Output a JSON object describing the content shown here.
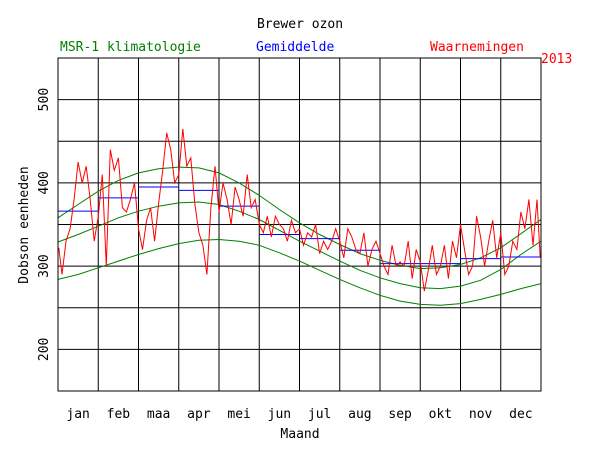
{
  "chart_data": {
    "type": "line",
    "title": "Brewer ozon",
    "year": "2013",
    "xlabel": "Maand",
    "ylabel": "Dobson eenheden",
    "categories": [
      "jan",
      "feb",
      "maa",
      "apr",
      "mei",
      "jun",
      "jul",
      "aug",
      "sep",
      "okt",
      "nov",
      "dec"
    ],
    "xlim": [
      0,
      12
    ],
    "ylim": [
      150,
      550
    ],
    "yticks": [
      200,
      300,
      400,
      500
    ],
    "grid": true,
    "legend": {
      "climatology": "MSR-1 klimatologie",
      "mean": "Gemiddelde",
      "observations": "Waarnemingen"
    },
    "colors": {
      "climatology": "#008000",
      "mean": "#0000ff",
      "observations": "#ff0000",
      "axes": "#000000"
    },
    "series": [
      {
        "name": "MSR-1 klimatologie (boven)",
        "kind": "climatology",
        "x": [
          0,
          0.5,
          1,
          1.5,
          2,
          2.5,
          3,
          3.5,
          4,
          4.5,
          5,
          5.5,
          6,
          6.5,
          7,
          7.5,
          8,
          8.5,
          9,
          9.5,
          10,
          10.5,
          11,
          11.5,
          12
        ],
        "values": [
          358,
          374,
          390,
          403,
          412,
          417,
          419,
          418,
          412,
          400,
          385,
          368,
          352,
          338,
          326,
          315,
          307,
          301,
          297,
          298,
          302,
          310,
          322,
          339,
          356
        ]
      },
      {
        "name": "MSR-1 klimatologie (midden)",
        "kind": "climatology",
        "x": [
          0,
          0.5,
          1,
          1.5,
          2,
          2.5,
          3,
          3.5,
          4,
          4.5,
          5,
          5.5,
          6,
          6.5,
          7,
          7.5,
          8,
          8.5,
          9,
          9.5,
          10,
          10.5,
          11,
          11.5,
          12
        ],
        "values": [
          329,
          338,
          348,
          358,
          366,
          372,
          376,
          377,
          374,
          366,
          356,
          343,
          330,
          318,
          306,
          295,
          286,
          279,
          274,
          273,
          276,
          283,
          296,
          314,
          330
        ]
      },
      {
        "name": "MSR-1 klimatologie (onder)",
        "kind": "climatology",
        "x": [
          0,
          0.5,
          1,
          1.5,
          2,
          2.5,
          3,
          3.5,
          4,
          4.5,
          5,
          5.5,
          6,
          6.5,
          7,
          7.5,
          8,
          8.5,
          9,
          9.5,
          10,
          10.5,
          11,
          11.5,
          12
        ],
        "values": [
          284,
          290,
          298,
          306,
          314,
          321,
          327,
          331,
          332,
          330,
          325,
          316,
          306,
          295,
          284,
          274,
          265,
          258,
          254,
          253,
          255,
          260,
          266,
          273,
          279
        ]
      },
      {
        "name": "Gemiddelde",
        "kind": "monthly-mean",
        "months": [
          "jan",
          "feb",
          "maa",
          "apr",
          "mei",
          "jun",
          "jul",
          "aug",
          "sep",
          "okt",
          "nov",
          "dec"
        ],
        "values": [
          366,
          382,
          395,
          391,
          372,
          338,
          333,
          319,
          303,
          303,
          309,
          311
        ]
      },
      {
        "name": "Waarnemingen",
        "kind": "observations",
        "x": [
          0.02,
          0.1,
          0.2,
          0.3,
          0.4,
          0.5,
          0.6,
          0.7,
          0.8,
          0.9,
          1.0,
          1.1,
          1.2,
          1.3,
          1.4,
          1.5,
          1.6,
          1.7,
          1.8,
          1.9,
          2.0,
          2.1,
          2.2,
          2.3,
          2.4,
          2.5,
          2.6,
          2.7,
          2.8,
          2.9,
          3.0,
          3.1,
          3.2,
          3.3,
          3.4,
          3.5,
          3.6,
          3.7,
          3.8,
          3.9,
          4.0,
          4.1,
          4.2,
          4.3,
          4.4,
          4.5,
          4.6,
          4.7,
          4.8,
          4.9,
          5.0,
          5.1,
          5.2,
          5.3,
          5.4,
          5.5,
          5.6,
          5.7,
          5.8,
          5.9,
          6.0,
          6.1,
          6.2,
          6.3,
          6.4,
          6.5,
          6.6,
          6.7,
          6.8,
          6.9,
          7.0,
          7.1,
          7.2,
          7.3,
          7.4,
          7.5,
          7.6,
          7.7,
          7.8,
          7.9,
          8.0,
          8.1,
          8.2,
          8.3,
          8.4,
          8.5,
          8.6,
          8.7,
          8.8,
          8.9,
          9.0,
          9.1,
          9.2,
          9.3,
          9.4,
          9.5,
          9.6,
          9.7,
          9.8,
          9.9,
          10.0,
          10.1,
          10.2,
          10.3,
          10.4,
          10.5,
          10.6,
          10.7,
          10.8,
          10.9,
          11.0,
          11.1,
          11.2,
          11.3,
          11.4,
          11.5,
          11.6,
          11.7,
          11.8,
          11.9,
          11.98
        ],
        "values": [
          322,
          290,
          330,
          345,
          380,
          425,
          400,
          420,
          380,
          330,
          360,
          410,
          300,
          440,
          415,
          430,
          370,
          365,
          380,
          400,
          345,
          320,
          355,
          370,
          330,
          375,
          415,
          460,
          440,
          400,
          410,
          465,
          420,
          430,
          375,
          340,
          325,
          290,
          370,
          420,
          365,
          400,
          380,
          350,
          395,
          380,
          360,
          410,
          370,
          380,
          350,
          340,
          360,
          335,
          360,
          350,
          345,
          330,
          355,
          340,
          345,
          325,
          340,
          335,
          350,
          315,
          330,
          320,
          330,
          345,
          330,
          310,
          345,
          335,
          320,
          315,
          340,
          300,
          320,
          330,
          315,
          300,
          290,
          325,
          300,
          305,
          300,
          330,
          285,
          320,
          305,
          270,
          295,
          325,
          290,
          300,
          325,
          285,
          330,
          310,
          350,
          320,
          290,
          300,
          360,
          335,
          300,
          330,
          355,
          310,
          340,
          290,
          300,
          330,
          320,
          365,
          345,
          380,
          325,
          380,
          310
        ]
      }
    ]
  }
}
